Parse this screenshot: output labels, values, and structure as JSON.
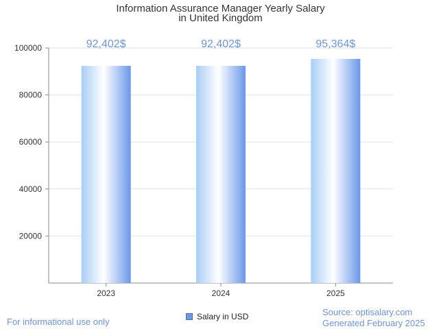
{
  "title_line1": "Information Assurance Manager Yearly Salary",
  "title_line2": "in United Kingdom",
  "footer": {
    "left": "For informational use only",
    "source": "Source: optisalary.com",
    "generated": "Generated February 2025"
  },
  "colors": {
    "accent": "#6c95d8",
    "bar_light": "#ffffff",
    "bar_mid": "#a8cdf6",
    "bar_dark": "#6a98ea",
    "grid": "#e2e2e2",
    "axis": "#8a8a8a"
  },
  "chart_data": {
    "type": "bar",
    "title": "Information Assurance Manager Yearly Salary in United Kingdom",
    "categories": [
      "2023",
      "2024",
      "2025"
    ],
    "values": [
      92402,
      92402,
      95364
    ],
    "data_labels": [
      "92,402$",
      "92,402$",
      "95,364$"
    ],
    "y_ticks": [
      20000,
      40000,
      60000,
      80000,
      100000
    ],
    "ylim": [
      0,
      100000
    ],
    "grid": true,
    "xlabel": "",
    "ylabel": "",
    "legend": {
      "label": "Salary in USD",
      "position": "bottom-center"
    }
  }
}
